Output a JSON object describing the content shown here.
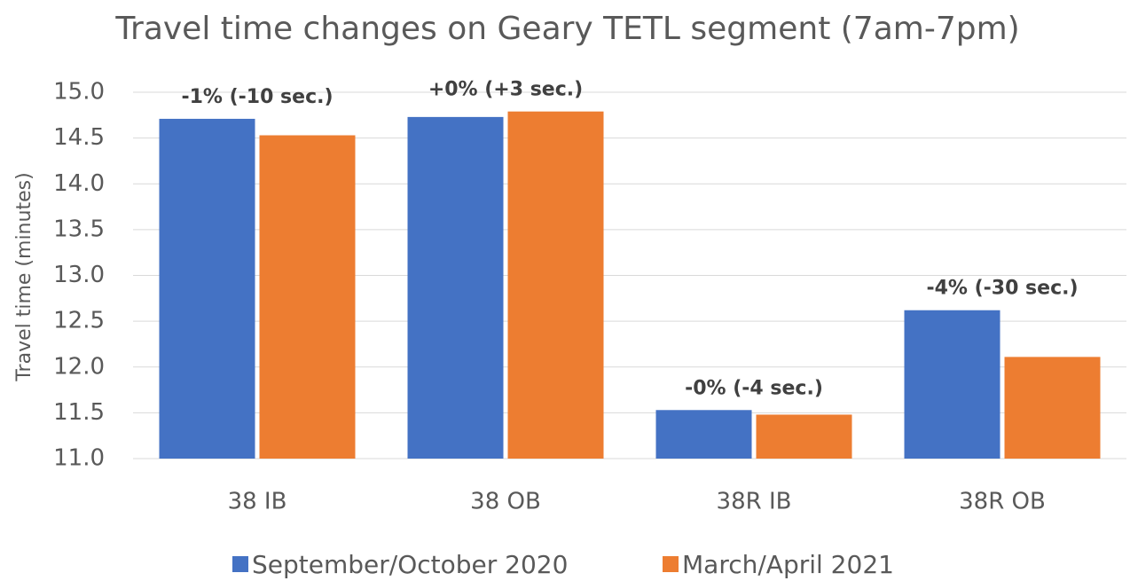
{
  "chart_data": {
    "type": "bar",
    "title": "Travel time changes on Geary TETL segment (7am-7pm)",
    "y_label": "Travel time (minutes)",
    "categories": [
      "38 IB",
      "38 OB",
      "38R IB",
      "38R OB"
    ],
    "series": [
      {
        "name": "September/October 2020",
        "color": "#4472c4",
        "values": [
          14.71,
          14.73,
          11.53,
          12.62
        ]
      },
      {
        "name": "March/April 2021",
        "color": "#ed7d31",
        "values": [
          14.53,
          14.79,
          11.48,
          12.11
        ]
      }
    ],
    "annotations": [
      "-1% (-10 sec.)",
      "+0% (+3 sec.)",
      "-0% (-4 sec.)",
      "-4% (-30 sec.)"
    ],
    "ylim": [
      11,
      15
    ],
    "yticks": [
      {
        "value": 11,
        "label": "11.0"
      },
      {
        "value": 11.5,
        "label": "11.5"
      },
      {
        "value": 12,
        "label": "12.0"
      },
      {
        "value": 12.5,
        "label": "12.5"
      },
      {
        "value": 13,
        "label": "13.0"
      },
      {
        "value": 13.5,
        "label": "13.5"
      },
      {
        "value": 14,
        "label": "14.0"
      },
      {
        "value": 14.5,
        "label": "14.5"
      },
      {
        "value": 15,
        "label": "15.0"
      }
    ],
    "grid": true
  }
}
